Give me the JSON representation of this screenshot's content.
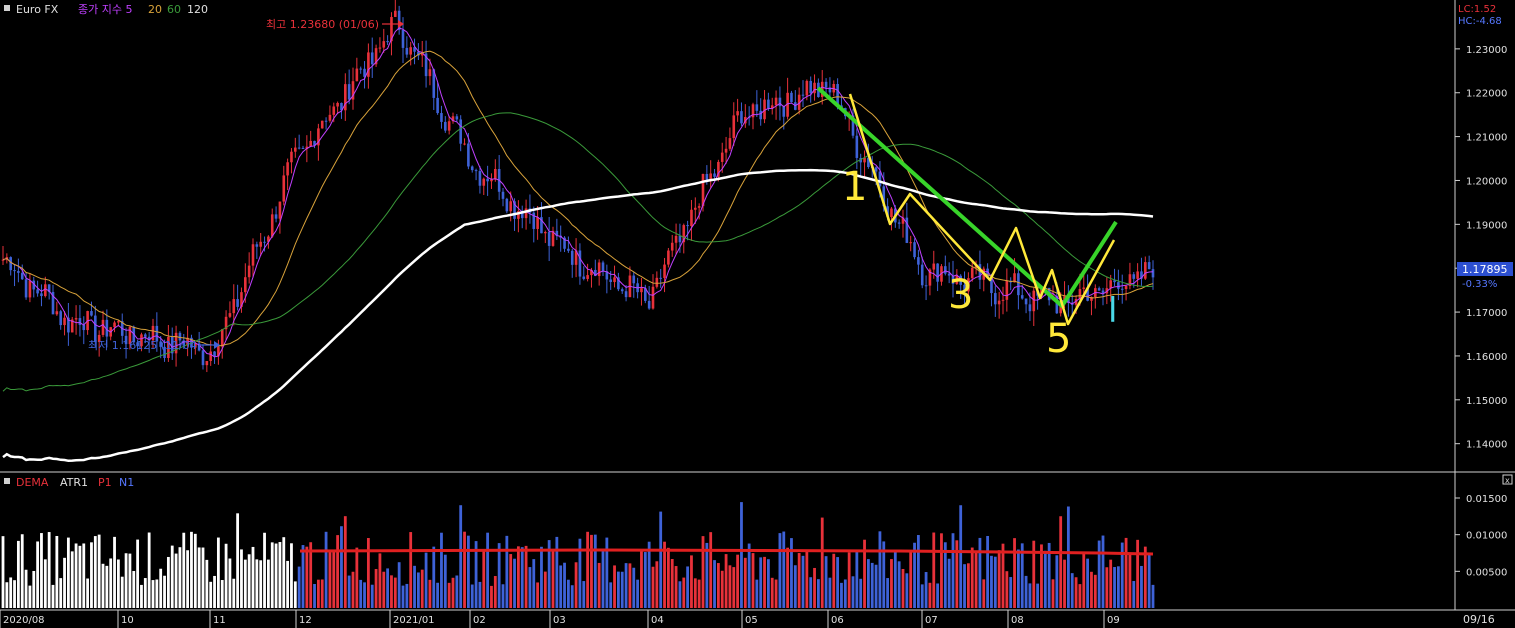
{
  "header": {
    "symbol": "Euro FX",
    "ma_label": "종가 지수 5",
    "ma20": "20",
    "ma60": "60",
    "ma120": "120",
    "lc": "LC:1.52",
    "hc": "HC:-4.68"
  },
  "high_note": "최고 1.23680 (01/06)",
  "low_note": "최저 1.16125 (11/04)",
  "price_badge": "1.17895",
  "change_pct": "-0.33%",
  "lower_header": {
    "dema": "DEMA",
    "atr": "ATR1",
    "p1": "P1",
    "n1": "N1"
  },
  "corner_label": "09/16",
  "colors": {
    "up": "#e8313a",
    "down": "#3e62d8",
    "ma5": "#c040ff",
    "ma20": "#d8a23a",
    "ma60": "#3a9a3a",
    "ma120": "#ffffff",
    "green_annot": "#38d42a",
    "yellow_annot": "#ffe83a",
    "cyan_annot": "#4ad8e8",
    "dema": "#e02020"
  },
  "annotations": {
    "n1": "1",
    "n3": "3",
    "n5": "5",
    "cyan_mark": "l"
  },
  "chart_data": [
    {
      "type": "candlestick",
      "title": "Euro FX",
      "x_ticks": [
        "2020/08",
        "10",
        "11",
        "12",
        "2021/01",
        "02",
        "03",
        "04",
        "05",
        "06",
        "07",
        "08",
        "09"
      ],
      "y_ticks": [
        "1.23000",
        "1.22000",
        "1.21000",
        "1.20000",
        "1.19000",
        "1.18000",
        "1.17000",
        "1.16000",
        "1.15000",
        "1.14000"
      ],
      "ylim": [
        1.134,
        1.24
      ],
      "key_points": [
        {
          "x": "2020/08",
          "close": 1.182
        },
        {
          "x": "2020/09",
          "close": 1.168
        },
        {
          "x": "2020/11",
          "close": 1.161
        },
        {
          "x": "2020/12",
          "close": 1.205
        },
        {
          "x": "2021/01",
          "close": 1.236
        },
        {
          "x": "2021/02",
          "close": 1.205
        },
        {
          "x": "2021/03",
          "close": 1.185
        },
        {
          "x": "2021/04",
          "close": 1.172
        },
        {
          "x": "2021/05",
          "close": 1.215
        },
        {
          "x": "2021/06",
          "close": 1.222
        },
        {
          "x": "2021/07",
          "close": 1.18
        },
        {
          "x": "2021/08",
          "close": 1.172
        },
        {
          "x": "2021/09",
          "close": 1.179
        }
      ],
      "series": [
        {
          "name": "종가 지수 5"
        },
        {
          "name": "20"
        },
        {
          "name": "60"
        },
        {
          "name": "120"
        }
      ]
    },
    {
      "type": "bar",
      "title": "ATR1",
      "y_ticks": [
        "0.01500",
        "0.01000",
        "0.00500"
      ],
      "ylim": [
        0,
        0.018
      ],
      "dema_level": 0.0075
    }
  ]
}
